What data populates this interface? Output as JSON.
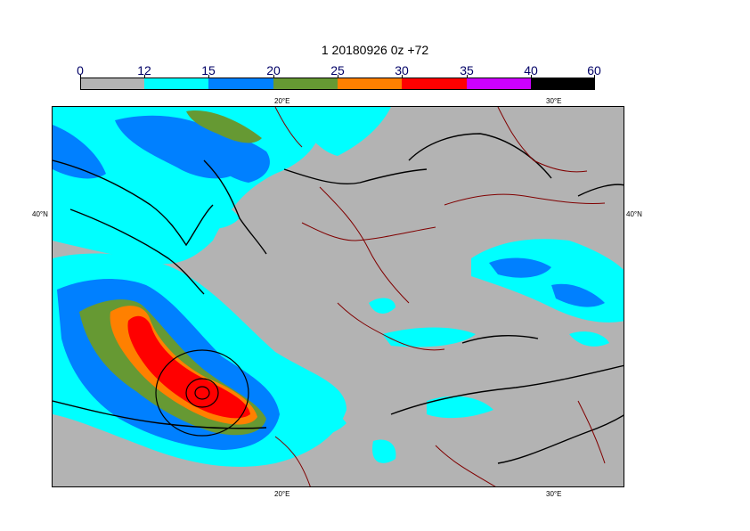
{
  "title": "1 20180926 0z +72",
  "colorbar": {
    "levels": [
      "0",
      "12",
      "15",
      "20",
      "25",
      "30",
      "35",
      "40",
      "60"
    ],
    "colors": [
      "#b3b3b3",
      "#00ffff",
      "#0080ff",
      "#669933",
      "#ff8000",
      "#ff0000",
      "#cc00ff",
      "#000000"
    ]
  },
  "map": {
    "top_labels": [
      "20°E",
      "30°E"
    ],
    "bottom_labels": [
      "20°E",
      "30°E"
    ],
    "left_label": "40°N",
    "right_label": "40°N",
    "colors": {
      "land": "#b3b3b3",
      "border": "#800000",
      "coast": "#000000",
      "isobar": "#000000"
    }
  }
}
